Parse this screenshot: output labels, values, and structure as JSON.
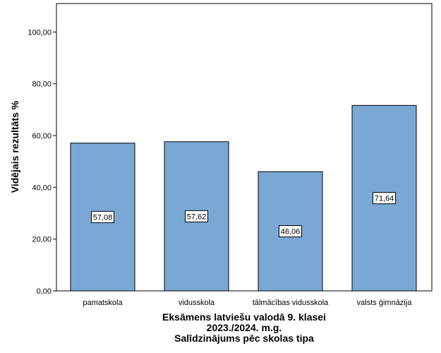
{
  "chart_data": {
    "type": "bar",
    "categories": [
      "pamatskola",
      "vidusskola",
      "tālmācības vidusskola",
      "valsts ģimnāzija"
    ],
    "values": [
      57.08,
      57.62,
      46.06,
      71.64
    ],
    "data_labels": [
      "57,08",
      "57,62",
      "46,06",
      "71,64"
    ],
    "ylabel": "Vidējais rezultāts %",
    "xlabel_lines": [
      "Eksāmens latviešu valodā 9. klasei",
      "2023./2024. m.g.",
      "Salīdzinājums pēc skolas tipa"
    ],
    "ylim": [
      0,
      111
    ],
    "yticks": [
      0,
      20,
      40,
      60,
      80,
      100
    ],
    "ytick_labels": [
      "0,00",
      "20,00",
      "40,00",
      "60,00",
      "80,00",
      "100,00"
    ],
    "grid": false,
    "bar_color": "#79a8d5",
    "bar_edge_color": "#000000"
  }
}
